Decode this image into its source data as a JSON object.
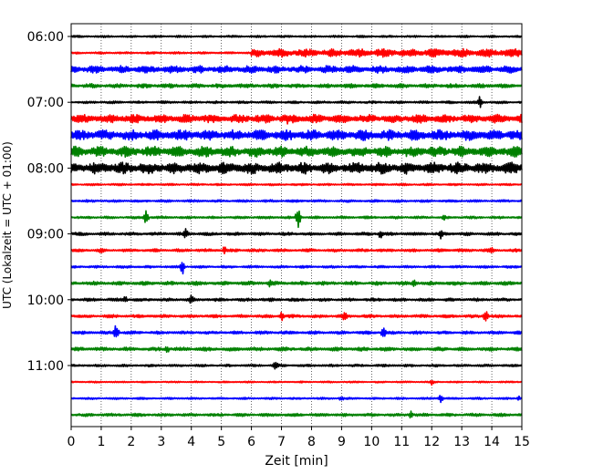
{
  "chart_data": {
    "type": "line",
    "title": "",
    "xlabel": "Zeit  [min]",
    "ylabel": "UTC (Lokalzeit = UTC + 01:00)",
    "xlim": [
      0,
      15
    ],
    "x_ticks": [
      "0",
      "1",
      "2",
      "3",
      "4",
      "5",
      "6",
      "7",
      "8",
      "9",
      "10",
      "11",
      "12",
      "13",
      "14",
      "15"
    ],
    "y_tick_labels": [
      "06:00",
      "07:00",
      "08:00",
      "09:00",
      "10:00",
      "11:00"
    ],
    "y_tick_rows": [
      0,
      4,
      8,
      12,
      16,
      20
    ],
    "row_colors": [
      "#000000",
      "#ff0000",
      "#0000ff",
      "#008000"
    ],
    "grid": "vertical dotted lines at each minute",
    "legend": "none",
    "rows": [
      {
        "start": "06:00",
        "color": "#000000",
        "amplitude": 0.1,
        "events": []
      },
      {
        "start": "06:15",
        "color": "#ff0000",
        "amplitude": 0.1,
        "events": [],
        "grow_from_min": 6,
        "grow_amplitude": 0.4
      },
      {
        "start": "06:30",
        "color": "#0000ff",
        "amplitude": 0.35,
        "events": []
      },
      {
        "start": "06:45",
        "color": "#008000",
        "amplitude": 0.2,
        "events": []
      },
      {
        "start": "07:00",
        "color": "#000000",
        "amplitude": 0.12,
        "events": [
          {
            "min": 13.6,
            "amp": 0.6
          }
        ]
      },
      {
        "start": "07:15",
        "color": "#ff0000",
        "amplitude": 0.4,
        "events": [
          {
            "min": 7.2,
            "amp": 0.5
          }
        ]
      },
      {
        "start": "07:30",
        "color": "#0000ff",
        "amplitude": 0.5,
        "events": []
      },
      {
        "start": "07:45",
        "color": "#008000",
        "amplitude": 0.5,
        "events": []
      },
      {
        "start": "08:00",
        "color": "#000000",
        "amplitude": 0.55,
        "events": []
      },
      {
        "start": "08:15",
        "color": "#ff0000",
        "amplitude": 0.1,
        "events": []
      },
      {
        "start": "08:30",
        "color": "#0000ff",
        "amplitude": 0.12,
        "events": []
      },
      {
        "start": "08:45",
        "color": "#008000",
        "amplitude": 0.12,
        "events": [
          {
            "min": 2.5,
            "amp": 0.7
          },
          {
            "min": 7.55,
            "amp": 1.0
          },
          {
            "min": 12.4,
            "amp": 0.3
          }
        ]
      },
      {
        "start": "09:00",
        "color": "#000000",
        "amplitude": 0.15,
        "events": [
          {
            "min": 3.8,
            "amp": 0.6
          },
          {
            "min": 10.3,
            "amp": 0.5
          },
          {
            "min": 12.3,
            "amp": 0.5
          }
        ]
      },
      {
        "start": "09:15",
        "color": "#ff0000",
        "amplitude": 0.15,
        "events": [
          {
            "min": 1.0,
            "amp": 0.4
          },
          {
            "min": 5.1,
            "amp": 0.4
          },
          {
            "min": 14.0,
            "amp": 0.4
          }
        ]
      },
      {
        "start": "09:30",
        "color": "#0000ff",
        "amplitude": 0.12,
        "events": [
          {
            "min": 3.7,
            "amp": 0.8
          }
        ]
      },
      {
        "start": "09:45",
        "color": "#008000",
        "amplitude": 0.18,
        "events": [
          {
            "min": 6.6,
            "amp": 0.4
          },
          {
            "min": 11.4,
            "amp": 0.4
          }
        ]
      },
      {
        "start": "10:00",
        "color": "#000000",
        "amplitude": 0.15,
        "events": [
          {
            "min": 1.8,
            "amp": 0.4
          },
          {
            "min": 4.0,
            "amp": 0.5
          }
        ]
      },
      {
        "start": "10:15",
        "color": "#ff0000",
        "amplitude": 0.15,
        "events": [
          {
            "min": 7.0,
            "amp": 0.5
          },
          {
            "min": 9.1,
            "amp": 0.6
          },
          {
            "min": 13.8,
            "amp": 0.6
          }
        ]
      },
      {
        "start": "10:30",
        "color": "#0000ff",
        "amplitude": 0.15,
        "events": [
          {
            "min": 1.5,
            "amp": 0.9
          },
          {
            "min": 10.4,
            "amp": 0.8
          }
        ]
      },
      {
        "start": "10:45",
        "color": "#008000",
        "amplitude": 0.18,
        "events": [
          {
            "min": 3.2,
            "amp": 0.4
          }
        ]
      },
      {
        "start": "11:00",
        "color": "#000000",
        "amplitude": 0.12,
        "events": [
          {
            "min": 6.8,
            "amp": 0.5
          }
        ]
      },
      {
        "start": "11:15",
        "color": "#ff0000",
        "amplitude": 0.08,
        "events": [
          {
            "min": 12.0,
            "amp": 0.3
          }
        ]
      },
      {
        "start": "11:30",
        "color": "#0000ff",
        "amplitude": 0.1,
        "events": [
          {
            "min": 9.0,
            "amp": 0.3
          },
          {
            "min": 12.3,
            "amp": 0.4
          },
          {
            "min": 14.9,
            "amp": 0.3
          }
        ]
      },
      {
        "start": "11:45",
        "color": "#008000",
        "amplitude": 0.15,
        "events": [
          {
            "min": 11.3,
            "amp": 0.4
          }
        ]
      }
    ]
  }
}
